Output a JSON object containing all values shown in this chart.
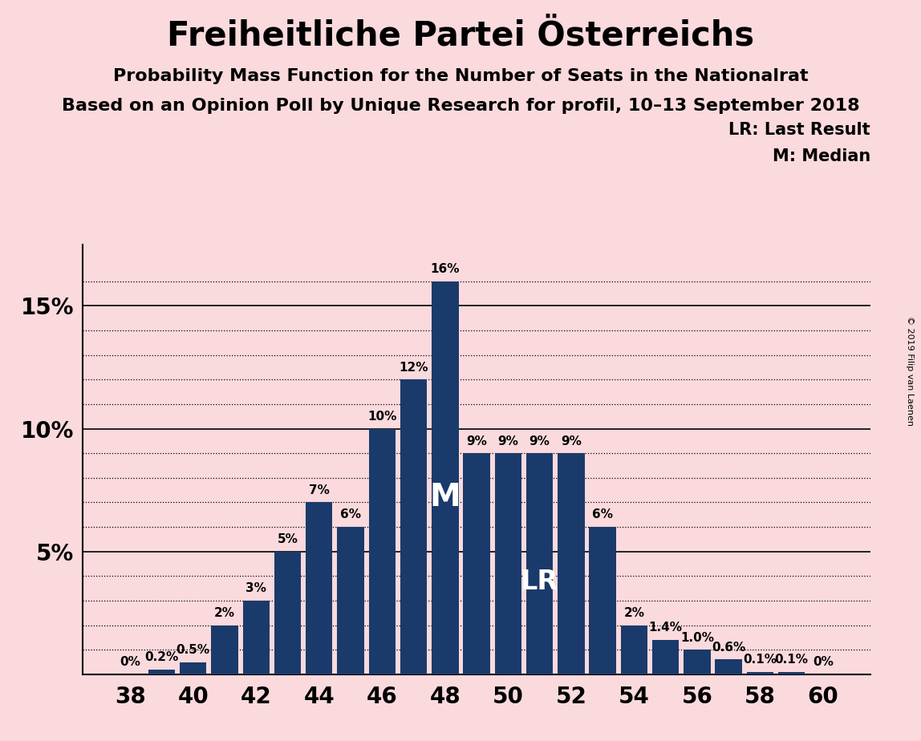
{
  "title": "Freiheitliche Partei Österreichs",
  "subtitle1": "Probability Mass Function for the Number of Seats in the Nationalrat",
  "subtitle2": "Based on an Opinion Poll by Unique Research for profil, 10–13 September 2018",
  "copyright": "© 2019 Filip van Laenen",
  "legend1": "LR: Last Result",
  "legend2": "M: Median",
  "background_color": "#fadadd",
  "bar_color": "#1a3a6b",
  "seats": [
    38,
    39,
    40,
    41,
    42,
    43,
    44,
    45,
    46,
    47,
    48,
    49,
    50,
    51,
    52,
    53,
    54,
    55,
    56,
    57,
    58,
    59,
    60
  ],
  "probabilities": [
    0.0,
    0.2,
    0.5,
    2.0,
    3.0,
    5.0,
    7.0,
    6.0,
    10.0,
    12.0,
    16.0,
    9.0,
    9.0,
    9.0,
    9.0,
    6.0,
    2.0,
    1.4,
    1.0,
    0.6,
    0.1,
    0.1,
    0.0
  ],
  "labels": [
    "0%",
    "0.2%",
    "0.5%",
    "2%",
    "3%",
    "5%",
    "7%",
    "6%",
    "10%",
    "12%",
    "16%",
    "9%",
    "9%",
    "9%",
    "9%",
    "6%",
    "2%",
    "1.4%",
    "1.0%",
    "0.6%",
    "0.1%",
    "0.1%",
    "0%"
  ],
  "median_seat": 48,
  "last_result_seat": 51,
  "ylim_max": 17.5,
  "ytick_positions": [
    0,
    5,
    10,
    15
  ],
  "ytick_labels": [
    "",
    "5%",
    "10%",
    "15%"
  ],
  "minor_yticks": [
    1,
    2,
    3,
    4,
    6,
    7,
    8,
    9,
    11,
    12,
    13,
    14,
    16
  ],
  "xticks": [
    38,
    40,
    42,
    44,
    46,
    48,
    50,
    52,
    54,
    56,
    58,
    60
  ],
  "title_fontsize": 30,
  "subtitle_fontsize": 16,
  "label_fontsize": 11,
  "axis_fontsize": 20,
  "legend_fontsize": 15,
  "median_label_fontsize": 28,
  "lr_label_fontsize": 24
}
